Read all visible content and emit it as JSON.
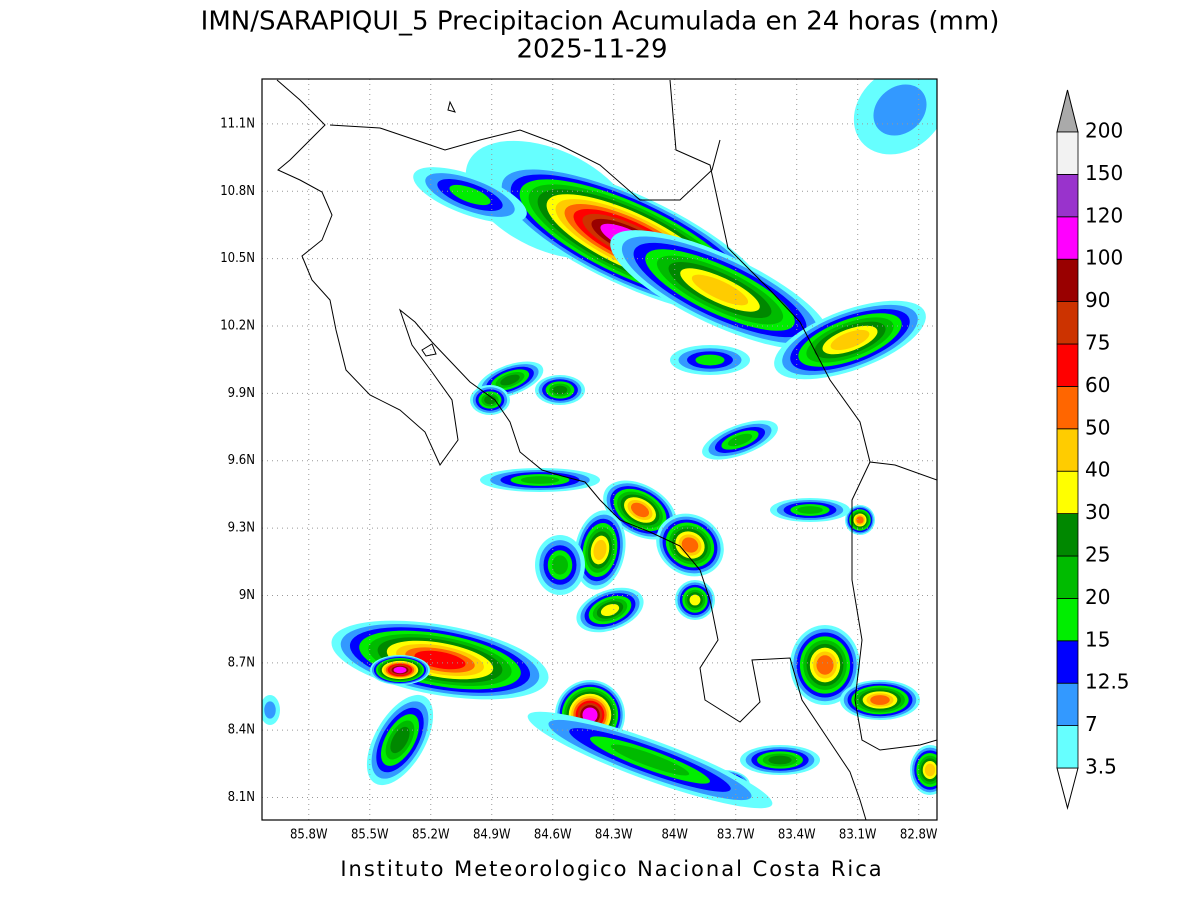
{
  "title": "IMN/SARAPIQUI_5 Precipitacion Acumulada en 24 horas (mm)",
  "subtitle": "2025-11-29",
  "footer": "Instituto Meteorologico Nacional Costa Rica",
  "map": {
    "xlim": [
      -86.03,
      -82.71
    ],
    "ylim": [
      8.0,
      11.3
    ],
    "xticks": [
      {
        "value": -85.8,
        "label": "85.8W"
      },
      {
        "value": -85.5,
        "label": "85.5W"
      },
      {
        "value": -85.2,
        "label": "85.2W"
      },
      {
        "value": -84.9,
        "label": "84.9W"
      },
      {
        "value": -84.6,
        "label": "84.6W"
      },
      {
        "value": -84.3,
        "label": "84.3W"
      },
      {
        "value": -84.0,
        "label": "84W"
      },
      {
        "value": -83.7,
        "label": "83.7W"
      },
      {
        "value": -83.4,
        "label": "83.4W"
      },
      {
        "value": -83.1,
        "label": "83.1W"
      },
      {
        "value": -82.8,
        "label": "82.8W"
      }
    ],
    "yticks": [
      {
        "value": 8.1,
        "label": "8.1N"
      },
      {
        "value": 8.4,
        "label": "8.4N"
      },
      {
        "value": 8.7,
        "label": "8.7N"
      },
      {
        "value": 9.0,
        "label": "9N"
      },
      {
        "value": 9.3,
        "label": "9.3N"
      },
      {
        "value": 9.6,
        "label": "9.6N"
      },
      {
        "value": 9.9,
        "label": "9.9N"
      },
      {
        "value": 10.2,
        "label": "10.2N"
      },
      {
        "value": 10.5,
        "label": "10.5N"
      },
      {
        "value": 10.8,
        "label": "10.8N"
      },
      {
        "value": 11.1,
        "label": "11.1N"
      }
    ]
  },
  "colorbar": {
    "levels": [
      3.5,
      7,
      12.5,
      15,
      20,
      25,
      30,
      40,
      50,
      60,
      75,
      90,
      100,
      120,
      150,
      200
    ],
    "colors": [
      "#66ffff",
      "#3399ff",
      "#0000ff",
      "#00ee00",
      "#00bb00",
      "#008800",
      "#ffff00",
      "#ffcc00",
      "#ff6600",
      "#ff0000",
      "#cc3300",
      "#990000",
      "#ff00ff",
      "#9933cc",
      "#f2f2f2"
    ],
    "under_color": "#ffffff",
    "over_color": "#aaaaaa"
  }
}
